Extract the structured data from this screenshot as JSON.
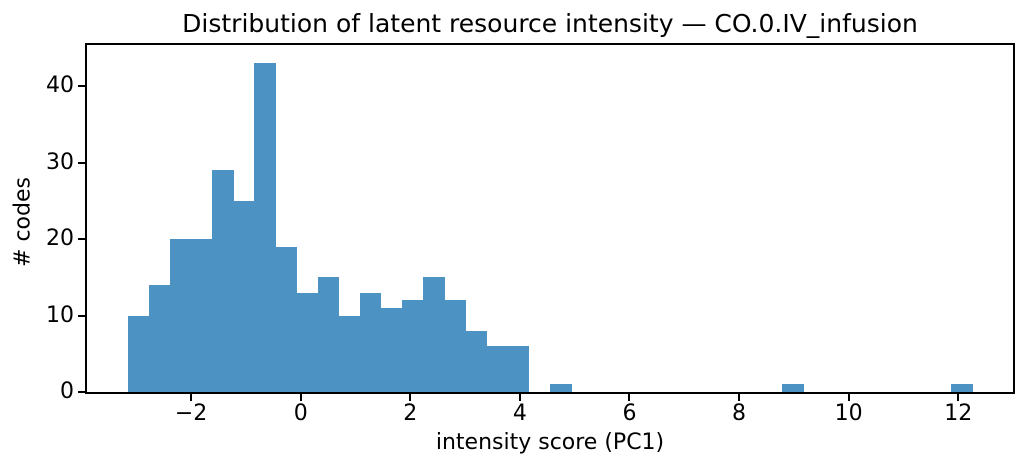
{
  "figure": {
    "background": "#ffffff"
  },
  "chart_data": {
    "type": "bar",
    "subtype": "histogram",
    "title": "Distribution of latent resource intensity — CO.0.IV_infusion",
    "xlabel": "intensity score (PC1)",
    "ylabel": "# codes",
    "bar_color": "#4c92c3",
    "axis_color": "#000000",
    "text_color": "#000000",
    "bin_start": -3.16,
    "bin_width": 0.3855,
    "counts": [
      10,
      14,
      20,
      20,
      29,
      25,
      43,
      19,
      13,
      15,
      10,
      13,
      11,
      12,
      15,
      12,
      8,
      6,
      6,
      0,
      1,
      0,
      0,
      0,
      0,
      0,
      0,
      0,
      0,
      0,
      0,
      1,
      0,
      0,
      0,
      0,
      0,
      0,
      0,
      1
    ],
    "xlim": [
      -3.9,
      13.0
    ],
    "ylim": [
      0,
      45.4
    ],
    "xticks": [
      -2,
      0,
      2,
      4,
      6,
      8,
      10,
      12
    ],
    "xtick_labels": [
      "−2",
      "0",
      "2",
      "4",
      "6",
      "8",
      "10",
      "12"
    ],
    "yticks": [
      0,
      10,
      20,
      30,
      40
    ],
    "ytick_labels": [
      "0",
      "10",
      "20",
      "30",
      "40"
    ],
    "grid": false,
    "legend": null
  }
}
